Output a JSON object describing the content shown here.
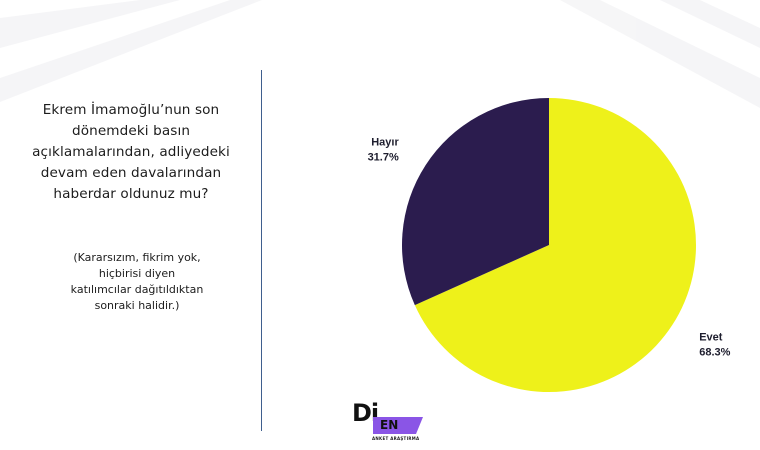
{
  "question": {
    "lines": [
      "Ekrem İmamoğlu’nun son",
      "dönemdeki basın",
      "açıklamalarından, adliyedeki",
      "devam eden davalarından",
      "haberdar oldunuz mu?"
    ],
    "note_lines": [
      "(Kararsızım, fikrim yok,",
      "hiçbirisi diyen",
      "katılımcılar dağıtıldıktan",
      "sonraki halidir.)"
    ]
  },
  "chart_data": {
    "type": "pie",
    "title": "",
    "slices": [
      {
        "label": "Evet",
        "value": 68.3,
        "value_label": "68.3%",
        "color": "#eef11a"
      },
      {
        "label": "Hayır",
        "value": 31.7,
        "value_label": "31.7%",
        "color": "#2b1c4e"
      }
    ],
    "start": "12 o'clock",
    "direction": "clockwise",
    "legend": "none"
  },
  "logo": {
    "mark": "Di",
    "badge": "EN",
    "tagline": "ANKET ARAŞTIRMA",
    "accent_color": "#8a55e6"
  }
}
